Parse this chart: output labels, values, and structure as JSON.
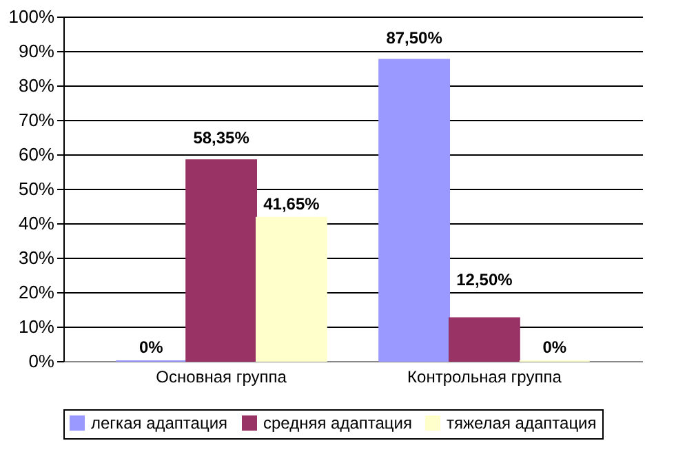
{
  "chart_data": {
    "type": "bar",
    "categories": [
      "Основная группа",
      "Контрольная группа"
    ],
    "series": [
      {
        "name": "легкая адаптация",
        "color": "#9999ff",
        "values": [
          0,
          87.5
        ],
        "value_labels": [
          "0%",
          "87,50%"
        ]
      },
      {
        "name": "средняя адаптация",
        "color": "#993366",
        "values": [
          58.35,
          12.5
        ],
        "value_labels": [
          "58,35%",
          "12,50%"
        ]
      },
      {
        "name": "тяжелая адаптация",
        "color": "#ffffcc",
        "values": [
          41.65,
          0
        ],
        "value_labels": [
          "41,65%",
          "0%"
        ]
      }
    ],
    "ylim": [
      0,
      100
    ],
    "yticks": [
      {
        "value": 0,
        "label": "0%"
      },
      {
        "value": 10,
        "label": "10%"
      },
      {
        "value": 20,
        "label": "20%"
      },
      {
        "value": 30,
        "label": "30%"
      },
      {
        "value": 40,
        "label": "40%"
      },
      {
        "value": 50,
        "label": "50%"
      },
      {
        "value": 60,
        "label": "60%"
      },
      {
        "value": 70,
        "label": "70%"
      },
      {
        "value": 80,
        "label": "80%"
      },
      {
        "value": 90,
        "label": "90%"
      },
      {
        "value": 100,
        "label": "100%"
      }
    ],
    "grid": "y",
    "legend": "bottom"
  }
}
